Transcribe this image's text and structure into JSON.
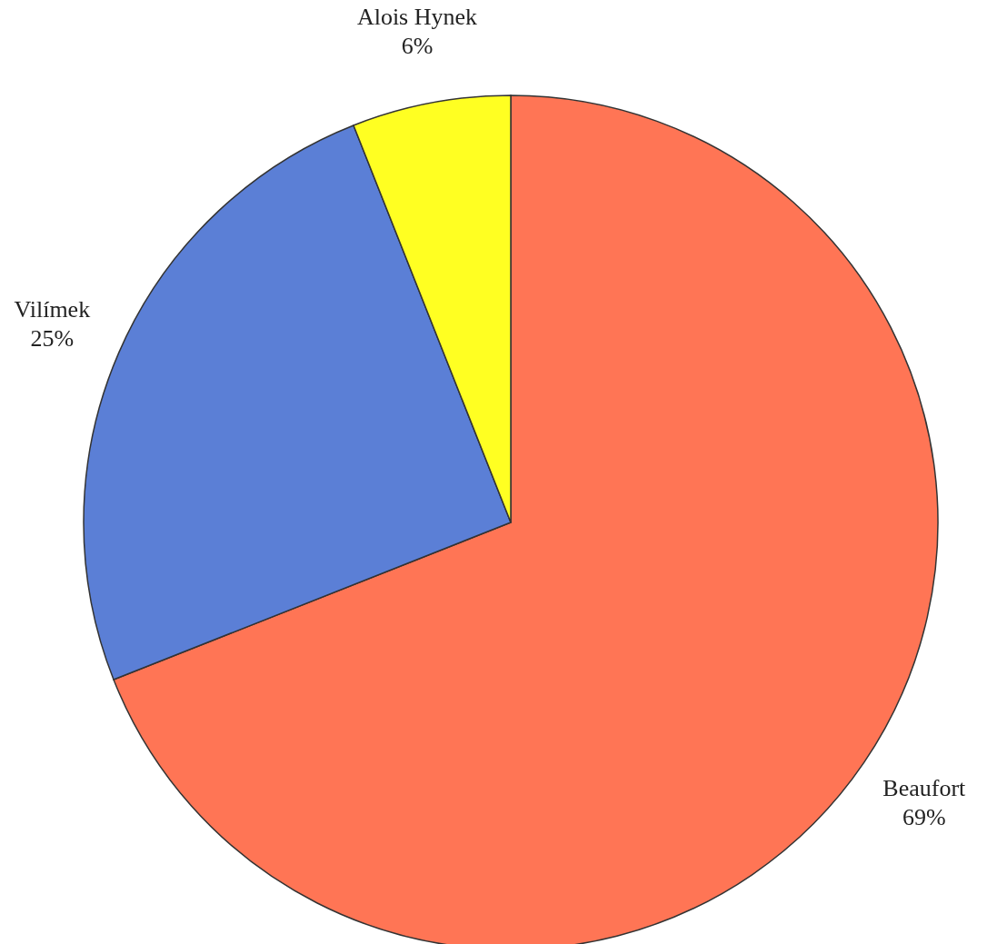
{
  "chart_data": {
    "type": "pie",
    "categories": [
      "Beaufort",
      "Vilímek",
      "Alois Hynek"
    ],
    "values": [
      69,
      25,
      6
    ],
    "colors": [
      "#ff7555",
      "#5b7fd6",
      "#ffff22"
    ],
    "value_labels": [
      "69%",
      "25%",
      "6%"
    ]
  }
}
